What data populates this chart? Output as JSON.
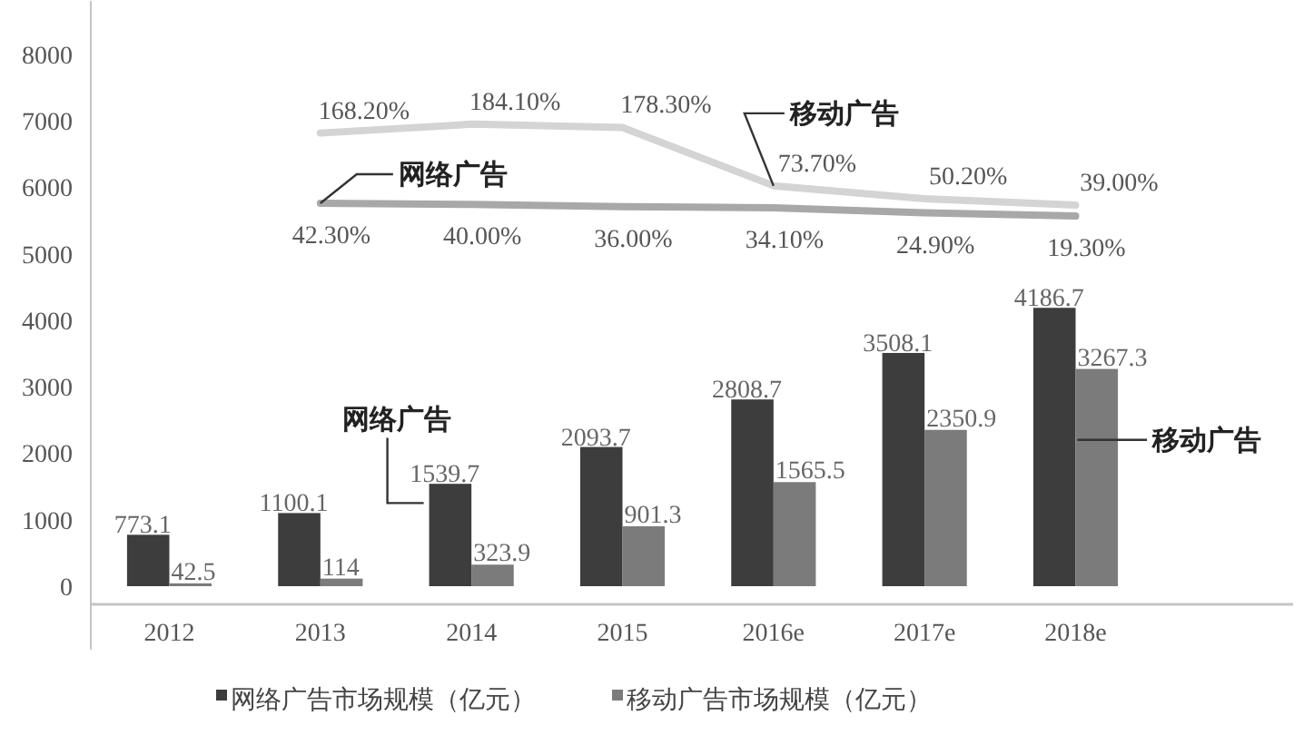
{
  "chart_data": {
    "type": "bar",
    "categories": [
      "2012",
      "2013",
      "2014",
      "2015",
      "2016e",
      "2017e",
      "2018e"
    ],
    "series": [
      {
        "name": "网络广告市场规模（亿元）",
        "color": "#3d3d3d",
        "values": [
          773.1,
          1100.1,
          1539.7,
          2093.7,
          2808.7,
          3508.1,
          4186.7
        ],
        "value_labels": [
          "773.1",
          "1100.1",
          "1539.7",
          "2093.7",
          "2808.7",
          "3508.1",
          "4186.7"
        ]
      },
      {
        "name": "移动广告市场规模（亿元）",
        "color": "#7b7b7b",
        "values": [
          42.5,
          114,
          323.9,
          901.3,
          1565.5,
          2350.9,
          3267.3
        ],
        "value_labels": [
          "42.5",
          "114",
          "323.9",
          "901.3",
          "1565.5",
          "2350.9",
          "3267.3"
        ]
      },
      {
        "type": "line",
        "axis": "y2",
        "color": "#d4d4d4",
        "values": [
          null,
          168.2,
          184.1,
          178.3,
          73.7,
          50.2,
          39.0
        ],
        "value_labels": [
          null,
          "168.20%",
          "184.10%",
          "178.30%",
          "73.70%",
          "50.20%",
          "39.00%"
        ]
      },
      {
        "type": "line",
        "axis": "y2",
        "color": "#a8a8a8",
        "values": [
          null,
          42.3,
          40.0,
          36.0,
          34.1,
          24.9,
          19.3
        ],
        "value_labels": [
          null,
          "42.30%",
          "40.00%",
          "36.00%",
          "34.10%",
          "24.90%",
          "19.30%"
        ]
      }
    ],
    "ylim": [
      0,
      8800
    ],
    "yticks": [
      0,
      1000,
      2000,
      3000,
      4000,
      5000,
      6000,
      7000,
      8000
    ],
    "y2lim": [
      -645,
      405
    ],
    "legend": "bottom",
    "annotations": [
      {
        "text": "移动广告",
        "x": "2016e",
        "y": 6020
      },
      {
        "text": "网络广告",
        "x": "2013",
        "y": 5760
      },
      {
        "text": "网络广告",
        "x": "2014",
        "y": 1250
      },
      {
        "text": "移动广告",
        "x": "2018e",
        "y": 2200
      }
    ]
  }
}
